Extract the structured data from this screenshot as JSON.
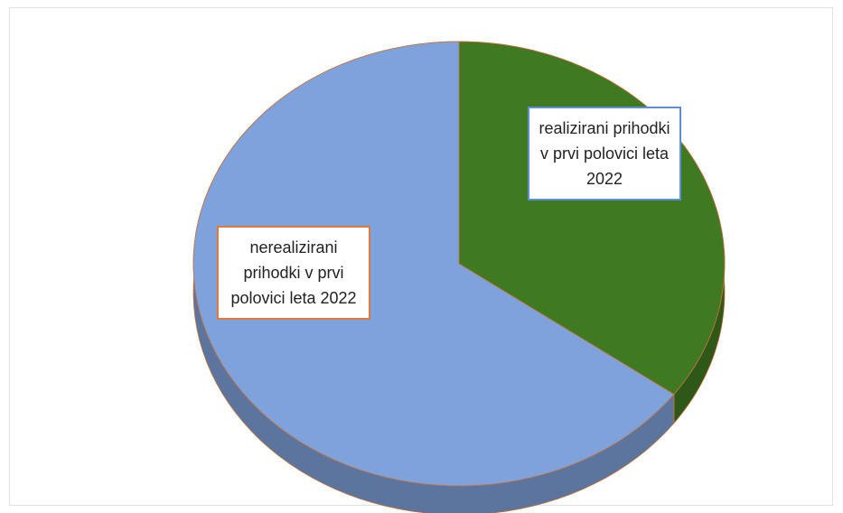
{
  "chart_data": {
    "type": "pie",
    "categories": [
      "realizirani prihodki v prvi polovici leta 2022",
      "nerealizirani prihodki v prvi polovici leta 2022"
    ],
    "values": [
      35,
      65
    ],
    "colors": [
      "#3f7a22",
      "#7ea2dc"
    ]
  }
}
